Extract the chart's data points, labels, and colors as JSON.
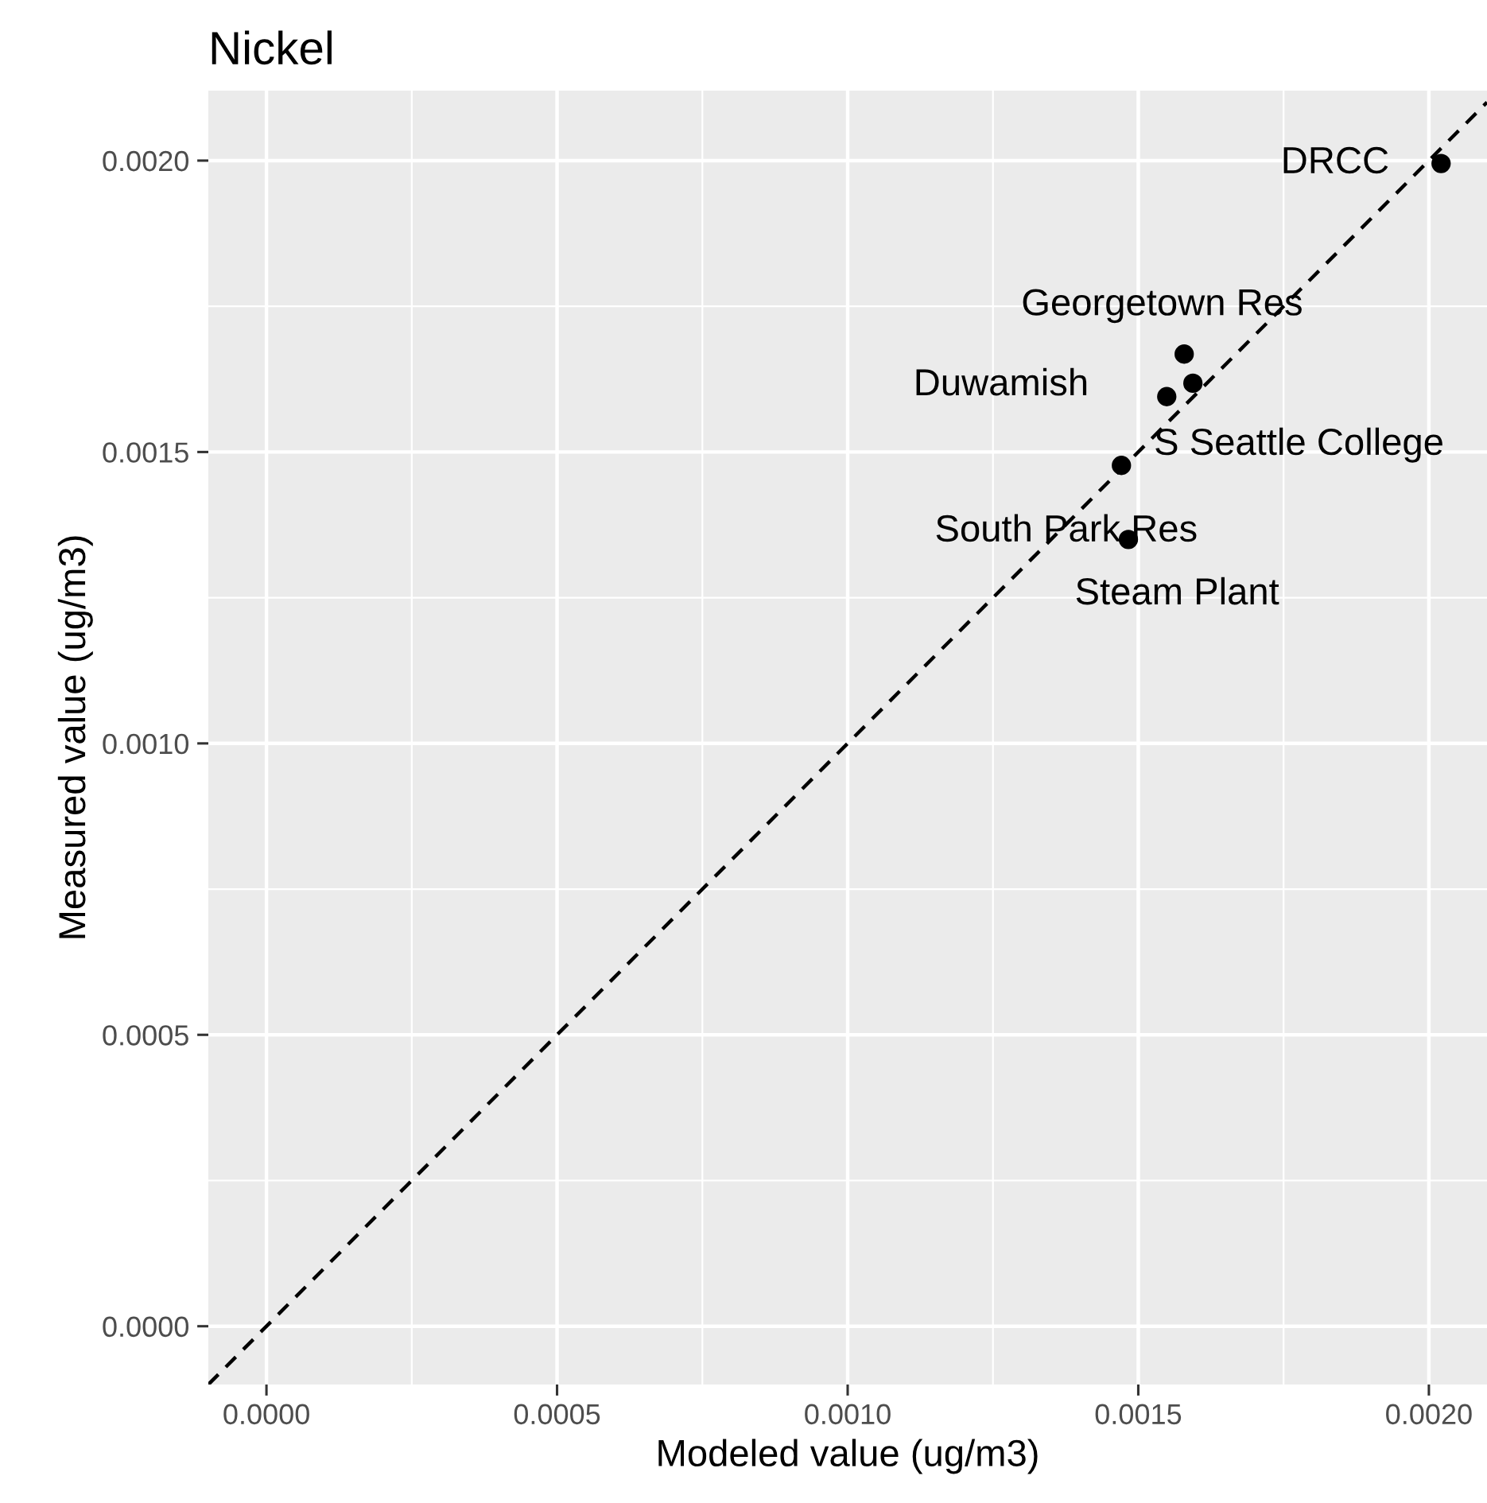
{
  "chart_data": {
    "type": "scatter",
    "title": "Nickel",
    "xlabel": "Modeled value (ug/m3)",
    "ylabel": "Measured value (ug/m3)",
    "x": [
      0.002021,
      0.001579,
      0.001594,
      0.001549,
      0.001471,
      0.001483
    ],
    "series": [
      {
        "color": "#000000",
        "marker": "circle",
        "values": [
          0.001995,
          0.001668,
          0.001618,
          0.001595,
          0.001477,
          0.00135
        ]
      },
      {
        "type": "line",
        "color": "#000000",
        "line_style": "dashed",
        "x": [
          -0.0001,
          0.0021
        ],
        "values": [
          -0.0001,
          0.0021
        ]
      }
    ],
    "annotations": [
      {
        "text": "DRCC",
        "x": 0.002021,
        "y": 0.001995
      },
      {
        "text": "Georgetown Res",
        "x": 0.001579,
        "y": 0.001668
      },
      {
        "text": "S Seattle College",
        "x": 0.001594,
        "y": 0.001618
      },
      {
        "text": "Duwamish",
        "x": 0.001549,
        "y": 0.001595
      },
      {
        "text": "South Park Res",
        "x": 0.001471,
        "y": 0.001477
      },
      {
        "text": "Steam Plant",
        "x": 0.001483,
        "y": 0.00135
      }
    ],
    "xlim": [
      -0.0001,
      0.0021
    ],
    "ylim": [
      -0.0001,
      0.00212
    ],
    "xticks": [
      {
        "value": 0,
        "label": "0.0000"
      },
      {
        "value": 0.0005,
        "label": "0.0005"
      },
      {
        "value": 0.001,
        "label": "0.0010"
      },
      {
        "value": 0.0015,
        "label": "0.0015"
      },
      {
        "value": 0.002,
        "label": "0.0020"
      }
    ],
    "yticks": [
      {
        "value": 0,
        "label": "0.0000"
      },
      {
        "value": 0.0005,
        "label": "0.0005"
      },
      {
        "value": 0.001,
        "label": "0.0010"
      },
      {
        "value": 0.0015,
        "label": "0.0015"
      },
      {
        "value": 0.002,
        "label": "0.0020"
      }
    ],
    "grid": true
  }
}
